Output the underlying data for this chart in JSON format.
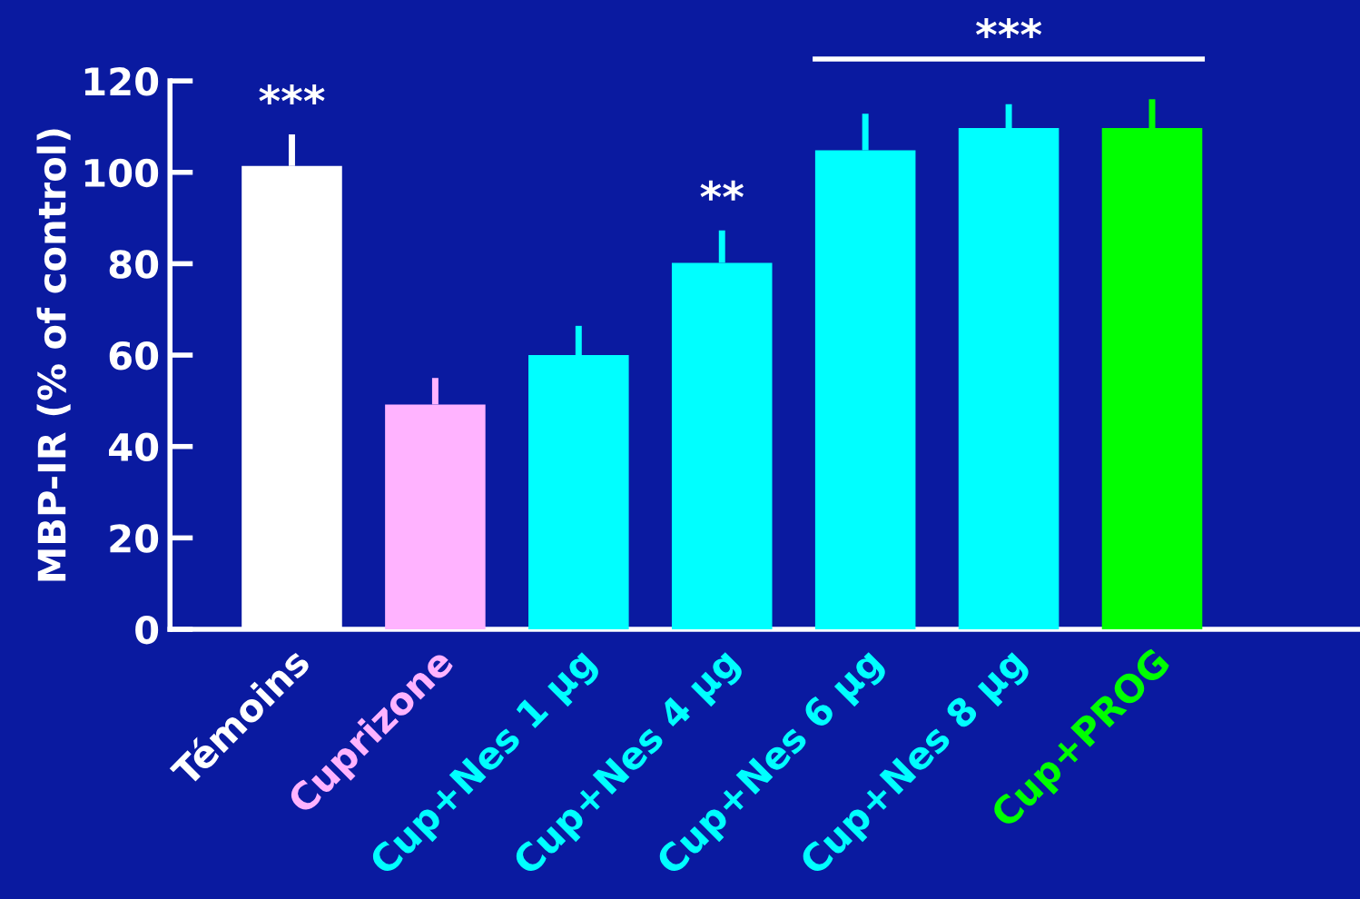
{
  "chart_data": {
    "type": "bar",
    "ylabel": "MBP-IR (% of control)",
    "categories": [
      "Témoins",
      "Cuprizone",
      "Cup+Nes 1 µg",
      "Cup+Nes 4 µg",
      "Cup+Nes 6 µg",
      "Cup+Nes 8 µg",
      "Cup+PROG"
    ],
    "values": [
      101.4,
      49.2,
      60,
      80.2,
      104.8,
      109.7,
      109.7
    ],
    "errors": [
      [
        101.4,
        108.3
      ],
      [
        49.2,
        55
      ],
      [
        60,
        66.4
      ],
      [
        80.2,
        87.3
      ],
      [
        104.8,
        112.8
      ],
      [
        109.7,
        114.9
      ],
      [
        109.7,
        116
      ]
    ],
    "colors": [
      "#ffffff",
      "#ffb3ff",
      "#00ffff",
      "#00ffff",
      "#00ffff",
      "#00ffff",
      "#00ff00"
    ],
    "ylim": [
      0,
      120
    ],
    "yticks": [
      0,
      20,
      40,
      60,
      80,
      100,
      120
    ],
    "grid": false,
    "legend": false,
    "annotations": [
      "***",
      "**",
      "***"
    ]
  }
}
